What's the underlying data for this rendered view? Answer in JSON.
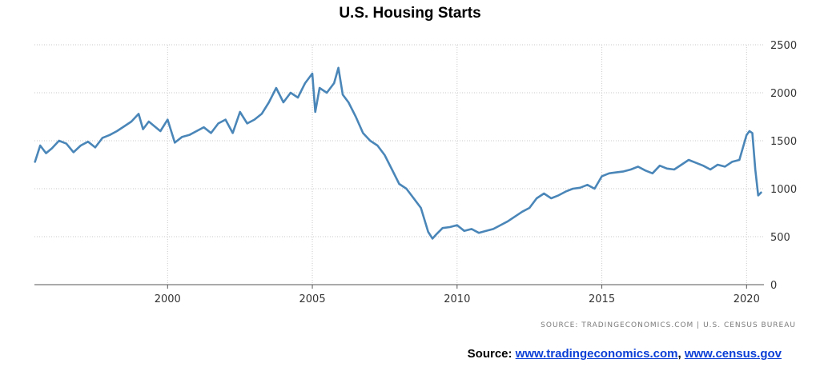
{
  "chart_data": {
    "type": "line",
    "title": "U.S. Housing Starts",
    "xlabel": "",
    "ylabel": "",
    "xlim": [
      1995.4,
      2020.6
    ],
    "ylim": [
      0,
      2500
    ],
    "x_ticks": [
      "2000",
      "2005",
      "2010",
      "2015",
      "2020"
    ],
    "y_ticks": [
      "0",
      "500",
      "1000",
      "1500",
      "2000",
      "2500"
    ],
    "y_axis_position": "right",
    "grid": true,
    "line_color": "#4a86b8",
    "series": [
      {
        "x": [
          1995.42,
          1995.6,
          1995.8,
          1996.0,
          1996.25,
          1996.5,
          1996.75,
          1997.0,
          1997.25,
          1997.5,
          1997.75,
          1998.0,
          1998.25,
          1998.5,
          1998.75,
          1999.0,
          1999.15,
          1999.35,
          1999.55,
          1999.75,
          2000.0,
          2000.25,
          2000.5,
          2000.75,
          2001.0,
          2001.25,
          2001.5,
          2001.75,
          2002.0,
          2002.25,
          2002.5,
          2002.75,
          2003.0,
          2003.25,
          2003.5,
          2003.75,
          2004.0,
          2004.25,
          2004.5,
          2004.75,
          2005.0,
          2005.1,
          2005.25,
          2005.5,
          2005.75,
          2005.9,
          2006.05,
          2006.25,
          2006.5,
          2006.75,
          2007.0,
          2007.25,
          2007.5,
          2007.75,
          2008.0,
          2008.25,
          2008.5,
          2008.75,
          2009.0,
          2009.15,
          2009.3,
          2009.5,
          2009.75,
          2010.0,
          2010.25,
          2010.5,
          2010.75,
          2011.0,
          2011.25,
          2011.5,
          2011.75,
          2012.0,
          2012.25,
          2012.5,
          2012.75,
          2013.0,
          2013.25,
          2013.5,
          2013.75,
          2014.0,
          2014.25,
          2014.5,
          2014.75,
          2015.0,
          2015.25,
          2015.5,
          2015.75,
          2016.0,
          2016.25,
          2016.5,
          2016.75,
          2017.0,
          2017.25,
          2017.5,
          2017.75,
          2018.0,
          2018.25,
          2018.5,
          2018.75,
          2019.0,
          2019.25,
          2019.5,
          2019.75,
          2020.0,
          2020.1,
          2020.2,
          2020.3,
          2020.4,
          2020.5
        ],
        "y": [
          1280,
          1450,
          1370,
          1420,
          1500,
          1470,
          1380,
          1450,
          1490,
          1430,
          1530,
          1560,
          1600,
          1650,
          1700,
          1780,
          1620,
          1700,
          1650,
          1600,
          1720,
          1480,
          1540,
          1560,
          1600,
          1640,
          1580,
          1680,
          1720,
          1580,
          1800,
          1680,
          1720,
          1780,
          1900,
          2050,
          1900,
          2000,
          1950,
          2100,
          2200,
          1800,
          2050,
          2000,
          2100,
          2260,
          1980,
          1900,
          1750,
          1580,
          1500,
          1450,
          1350,
          1200,
          1050,
          1000,
          900,
          800,
          550,
          480,
          530,
          590,
          600,
          620,
          560,
          580,
          540,
          560,
          580,
          620,
          660,
          710,
          760,
          800,
          900,
          950,
          900,
          930,
          970,
          1000,
          1010,
          1040,
          1000,
          1130,
          1160,
          1170,
          1180,
          1200,
          1230,
          1190,
          1160,
          1240,
          1210,
          1200,
          1250,
          1300,
          1270,
          1240,
          1200,
          1250,
          1230,
          1280,
          1300,
          1560,
          1600,
          1580,
          1200,
          930,
          960
        ]
      }
    ]
  },
  "source_note": "SOURCE: TRADINGECONOMICS.COM | U.S. CENSUS BUREAU",
  "footer": {
    "label": "Source: ",
    "link1": "www.tradingeconomics.com",
    "separator": ", ",
    "link2": "www.census.gov"
  }
}
